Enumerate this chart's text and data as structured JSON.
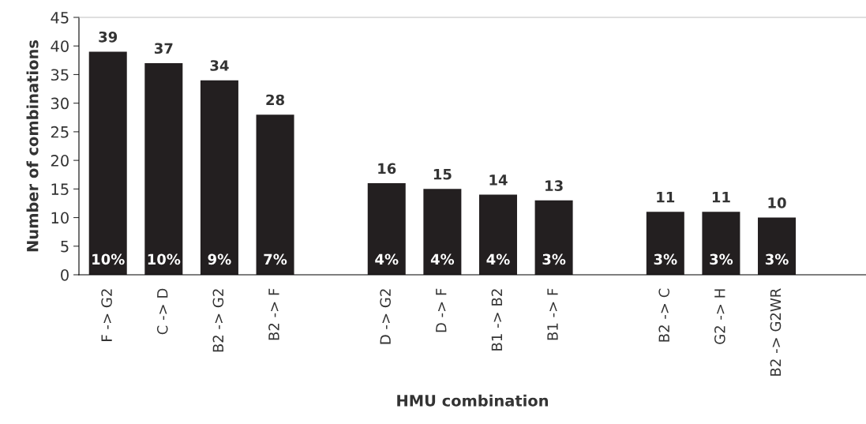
{
  "chart_data": {
    "type": "bar",
    "xlabel": "HMU combination",
    "ylabel": "Number of combinations",
    "categories": [
      "F -> G2",
      "C -> D",
      "B2 -> G2",
      "B2 -> F",
      null,
      "D -> G2",
      "D -> F",
      "B1 -> B2",
      "B1 -> F",
      null,
      "B2 -> C",
      "G2 -> H",
      "B2 -> G2WR"
    ],
    "values": [
      39,
      37,
      34,
      28,
      null,
      16,
      15,
      14,
      13,
      null,
      11,
      11,
      10
    ],
    "color": "#231f20",
    "data_labels": true,
    "grid": false,
    "legend": false,
    "ylim": [
      0,
      45
    ],
    "yticks": [
      0,
      5,
      10,
      15,
      20,
      25,
      30,
      35,
      40,
      45
    ],
    "annotations": [
      "10%",
      "10%",
      "9%",
      "7%",
      "4%",
      "4%",
      "4%",
      "3%",
      "3%",
      "3%",
      "3%"
    ]
  }
}
